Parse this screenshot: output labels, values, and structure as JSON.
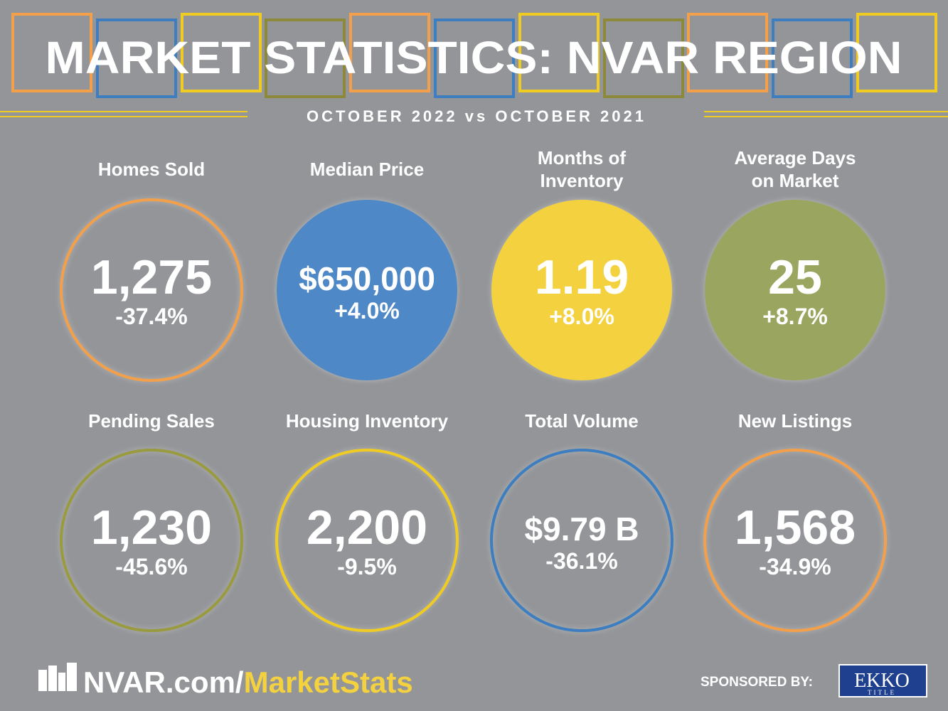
{
  "header": {
    "title": "MARKET STATISTICS: NVAR REGION",
    "subtitle": "OCTOBER 2022 vs OCTOBER 2021"
  },
  "stats": [
    {
      "label": [
        "Homes Sold"
      ],
      "value": "1,275",
      "change": "-37.4%"
    },
    {
      "label": [
        "Median Price"
      ],
      "value": "$650,000",
      "change": "+4.0%"
    },
    {
      "label": [
        "Months of",
        "Inventory"
      ],
      "value": "1.19",
      "change": "+8.0%"
    },
    {
      "label": [
        "Average Days",
        "on Market"
      ],
      "value": "25",
      "change": "+8.7%"
    },
    {
      "label": [
        "Pending Sales"
      ],
      "value": "1,230",
      "change": "-45.6%"
    },
    {
      "label": [
        "Housing Inventory"
      ],
      "value": "2,200",
      "change": "-9.5%"
    },
    {
      "label": [
        "Total Volume"
      ],
      "value": "$9.79 B",
      "change": "-36.1%"
    },
    {
      "label": [
        "New Listings"
      ],
      "value": "1,568",
      "change": "-34.9%"
    }
  ],
  "footer": {
    "url_main": "NVAR.com/",
    "url_highlight": "MarketStats",
    "sponsor_label": "SPONSORED BY:",
    "sponsor_name": "EKKO",
    "sponsor_sub": "TITLE"
  }
}
